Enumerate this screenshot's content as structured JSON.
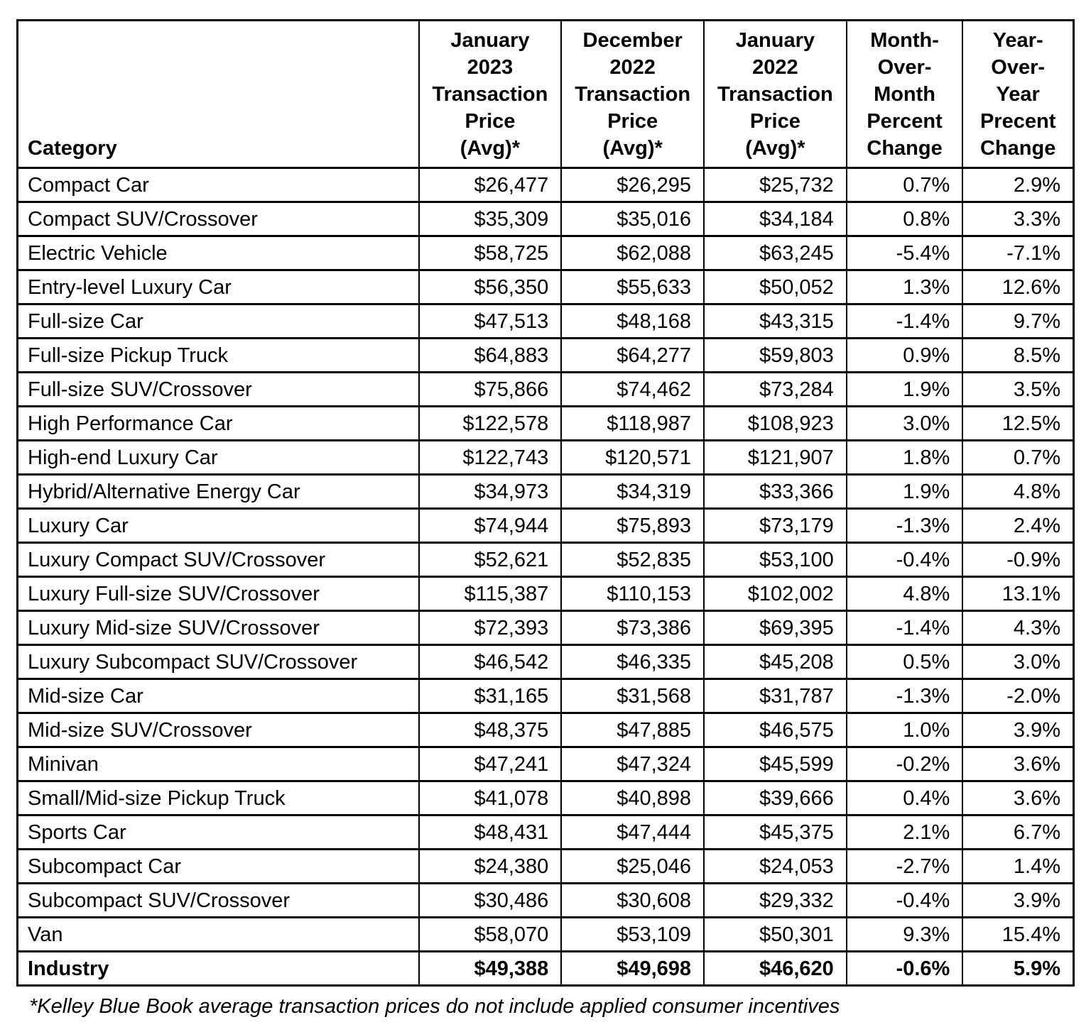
{
  "colors": {
    "background": "#ffffff",
    "text": "#000000",
    "border": "#000000"
  },
  "chart_data": {
    "type": "table",
    "columns": [
      "Category",
      "January\n2023\nTransaction\nPrice\n(Avg)*",
      "December\n2022\nTransaction\nPrice\n(Avg)*",
      "January\n2022\nTransaction\nPrice\n(Avg)*",
      "Month-\nOver-\nMonth\nPercent\nChange",
      "Year-\nOver-\nYear\nPrecent\nChange"
    ],
    "rows": [
      [
        "Compact Car",
        "$26,477",
        "$26,295",
        "$25,732",
        "0.7%",
        "2.9%"
      ],
      [
        "Compact SUV/Crossover",
        "$35,309",
        "$35,016",
        "$34,184",
        "0.8%",
        "3.3%"
      ],
      [
        "Electric Vehicle",
        "$58,725",
        "$62,088",
        "$63,245",
        "-5.4%",
        "-7.1%"
      ],
      [
        "Entry-level Luxury Car",
        "$56,350",
        "$55,633",
        "$50,052",
        "1.3%",
        "12.6%"
      ],
      [
        "Full-size Car",
        "$47,513",
        "$48,168",
        "$43,315",
        "-1.4%",
        "9.7%"
      ],
      [
        "Full-size Pickup Truck",
        "$64,883",
        "$64,277",
        "$59,803",
        "0.9%",
        "8.5%"
      ],
      [
        "Full-size SUV/Crossover",
        "$75,866",
        "$74,462",
        "$73,284",
        "1.9%",
        "3.5%"
      ],
      [
        "High Performance Car",
        "$122,578",
        "$118,987",
        "$108,923",
        "3.0%",
        "12.5%"
      ],
      [
        "High-end Luxury Car",
        "$122,743",
        "$120,571",
        "$121,907",
        "1.8%",
        "0.7%"
      ],
      [
        "Hybrid/Alternative Energy Car",
        "$34,973",
        "$34,319",
        "$33,366",
        "1.9%",
        "4.8%"
      ],
      [
        "Luxury Car",
        "$74,944",
        "$75,893",
        "$73,179",
        "-1.3%",
        "2.4%"
      ],
      [
        "Luxury Compact SUV/Crossover",
        "$52,621",
        "$52,835",
        "$53,100",
        "-0.4%",
        "-0.9%"
      ],
      [
        "Luxury Full-size SUV/Crossover",
        "$115,387",
        "$110,153",
        "$102,002",
        "4.8%",
        "13.1%"
      ],
      [
        "Luxury Mid-size SUV/Crossover",
        "$72,393",
        "$73,386",
        "$69,395",
        "-1.4%",
        "4.3%"
      ],
      [
        "Luxury Subcompact SUV/Crossover",
        "$46,542",
        "$46,335",
        "$45,208",
        "0.5%",
        "3.0%"
      ],
      [
        "Mid-size Car",
        "$31,165",
        "$31,568",
        "$31,787",
        "-1.3%",
        "-2.0%"
      ],
      [
        "Mid-size SUV/Crossover",
        "$48,375",
        "$47,885",
        "$46,575",
        "1.0%",
        "3.9%"
      ],
      [
        "Minivan",
        "$47,241",
        "$47,324",
        "$45,599",
        "-0.2%",
        "3.6%"
      ],
      [
        "Small/Mid-size Pickup Truck",
        "$41,078",
        "$40,898",
        "$39,666",
        "0.4%",
        "3.6%"
      ],
      [
        "Sports Car",
        "$48,431",
        "$47,444",
        "$45,375",
        "2.1%",
        "6.7%"
      ],
      [
        "Subcompact Car",
        "$24,380",
        "$25,046",
        "$24,053",
        "-2.7%",
        "1.4%"
      ],
      [
        "Subcompact SUV/Crossover",
        "$30,486",
        "$30,608",
        "$29,332",
        "-0.4%",
        "3.9%"
      ],
      [
        "Van",
        "$58,070",
        "$53,109",
        "$50,301",
        "9.3%",
        "15.4%"
      ]
    ],
    "footer_row": [
      "Industry",
      "$49,388",
      "$49,698",
      "$46,620",
      "-0.6%",
      "5.9%"
    ],
    "footnote": "*Kelley Blue Book average transaction prices do not include applied consumer incentives",
    "layout_hints": {
      "grid": "on",
      "header_alignment": "center-bottom",
      "category_alignment": "left",
      "value_alignment": "right"
    }
  }
}
